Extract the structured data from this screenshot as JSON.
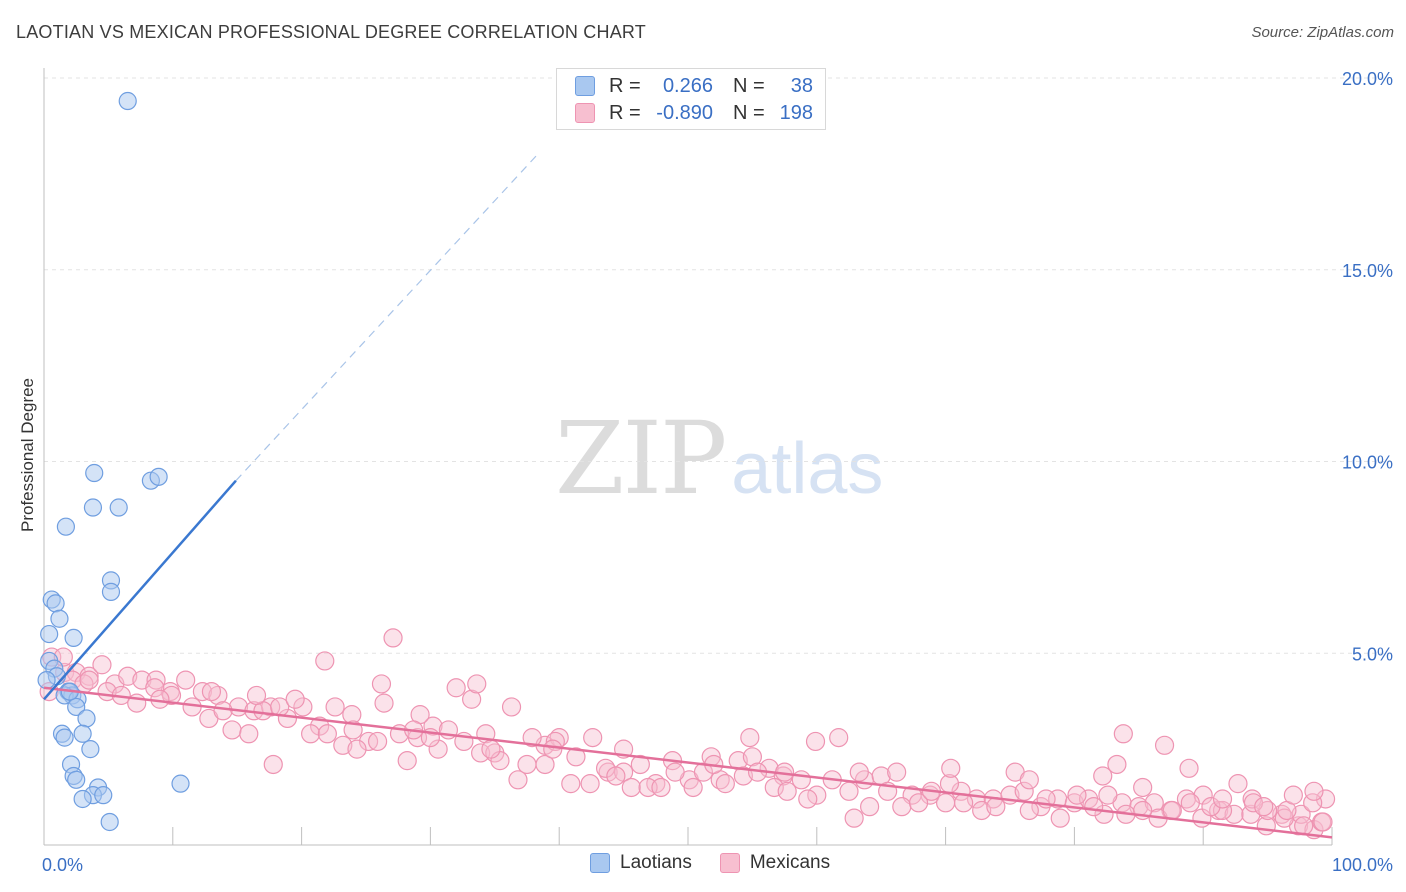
{
  "header": {
    "title": "LAOTIAN VS MEXICAN PROFESSIONAL DEGREE CORRELATION CHART",
    "source": "Source: ZipAtlas.com"
  },
  "watermark": {
    "zip": "ZIP",
    "atlas": "atlas"
  },
  "legend": {
    "rows": [
      {
        "r_label": "R =",
        "r_value": "0.266",
        "n_label": "N =",
        "n_value": "38"
      },
      {
        "r_label": "R =",
        "r_value": "-0.890",
        "n_label": "N =",
        "n_value": "198"
      }
    ]
  },
  "bottom_legend": {
    "laotians": "Laotians",
    "mexicans": "Mexicans"
  },
  "colors": {
    "laotian_fill": "#a9c8f0",
    "laotian_stroke": "#6f9ee0",
    "laotian_line": "#3a78d0",
    "mexican_fill": "#f7bfd0",
    "mexican_stroke": "#ee94b2",
    "mexican_line": "#e3709a",
    "axis_text": "#3a6fc4"
  },
  "chart_data": {
    "type": "scatter",
    "title": "LAOTIAN VS MEXICAN PROFESSIONAL DEGREE CORRELATION CHART",
    "xlabel": "",
    "ylabel": "Professional Degree",
    "xlim": [
      0,
      100
    ],
    "ylim": [
      0,
      20
    ],
    "x_tick_labels": [
      "0.0%",
      "100.0%"
    ],
    "y_ticks": [
      5,
      10,
      15,
      20
    ],
    "y_tick_labels": [
      "5.0%",
      "10.0%",
      "15.0%",
      "20.0%"
    ],
    "grid": true,
    "series": [
      {
        "name": "Laotians",
        "R": 0.266,
        "N": 38,
        "points": [
          [
            6.5,
            19.4
          ],
          [
            0.6,
            6.4
          ],
          [
            0.9,
            6.3
          ],
          [
            1.7,
            8.3
          ],
          [
            3.9,
            9.7
          ],
          [
            3.8,
            8.8
          ],
          [
            5.8,
            8.8
          ],
          [
            8.3,
            9.5
          ],
          [
            8.9,
            9.6
          ],
          [
            5.2,
            6.9
          ],
          [
            5.2,
            6.6
          ],
          [
            0.4,
            5.5
          ],
          [
            1.2,
            5.9
          ],
          [
            2.3,
            5.4
          ],
          [
            0.4,
            4.8
          ],
          [
            0.8,
            4.6
          ],
          [
            1.0,
            4.4
          ],
          [
            1.9,
            4.0
          ],
          [
            2.2,
            3.9
          ],
          [
            1.6,
            3.9
          ],
          [
            2.6,
            3.8
          ],
          [
            2.5,
            3.6
          ],
          [
            3.3,
            3.3
          ],
          [
            1.4,
            2.9
          ],
          [
            1.6,
            2.8
          ],
          [
            3.0,
            2.9
          ],
          [
            3.6,
            2.5
          ],
          [
            2.1,
            2.1
          ],
          [
            2.3,
            1.8
          ],
          [
            2.5,
            1.7
          ],
          [
            4.2,
            1.5
          ],
          [
            3.8,
            1.3
          ],
          [
            4.6,
            1.3
          ],
          [
            3.0,
            1.2
          ],
          [
            10.6,
            1.6
          ],
          [
            5.1,
            0.6
          ],
          [
            0.2,
            4.3
          ],
          [
            2.0,
            4.0
          ]
        ],
        "trend_solid": [
          [
            0,
            3.8
          ],
          [
            14.9,
            9.5
          ]
        ],
        "trend_dashed": [
          [
            14.9,
            9.5
          ],
          [
            38.3,
            18.0
          ]
        ]
      },
      {
        "name": "Mexicans",
        "R": -0.89,
        "N": 198,
        "points": [
          [
            0.4,
            4.0
          ],
          [
            1.6,
            4.5
          ],
          [
            2.5,
            4.5
          ],
          [
            3.5,
            4.4
          ],
          [
            4.5,
            4.7
          ],
          [
            5.5,
            4.2
          ],
          [
            6.5,
            4.4
          ],
          [
            7.6,
            4.3
          ],
          [
            8.7,
            4.3
          ],
          [
            9.8,
            4.0
          ],
          [
            11.0,
            4.3
          ],
          [
            12.3,
            4.0
          ],
          [
            13.5,
            3.9
          ],
          [
            15.1,
            3.6
          ],
          [
            16.3,
            3.5
          ],
          [
            17.6,
            3.6
          ],
          [
            18.9,
            3.3
          ],
          [
            20.1,
            3.6
          ],
          [
            21.4,
            3.1
          ],
          [
            22.6,
            3.6
          ],
          [
            23.9,
            3.4
          ],
          [
            25.2,
            2.7
          ],
          [
            26.4,
            3.7
          ],
          [
            27.6,
            2.9
          ],
          [
            29.0,
            2.8
          ],
          [
            30.2,
            3.1
          ],
          [
            31.4,
            3.0
          ],
          [
            32.6,
            2.7
          ],
          [
            33.9,
            2.4
          ],
          [
            35.0,
            2.4
          ],
          [
            36.3,
            3.6
          ],
          [
            37.5,
            2.1
          ],
          [
            38.9,
            2.6
          ],
          [
            40.0,
            2.8
          ],
          [
            41.3,
            2.3
          ],
          [
            42.6,
            2.8
          ],
          [
            43.8,
            1.9
          ],
          [
            45.0,
            1.9
          ],
          [
            46.3,
            2.1
          ],
          [
            47.5,
            1.6
          ],
          [
            48.8,
            2.2
          ],
          [
            50.1,
            1.7
          ],
          [
            51.2,
            1.9
          ],
          [
            52.5,
            1.7
          ],
          [
            53.9,
            2.2
          ],
          [
            55.0,
            2.3
          ],
          [
            56.3,
            2.0
          ],
          [
            57.4,
            1.8
          ],
          [
            58.8,
            1.7
          ],
          [
            60.0,
            1.3
          ],
          [
            61.2,
            1.7
          ],
          [
            62.5,
            1.4
          ],
          [
            63.7,
            1.7
          ],
          [
            65.0,
            1.8
          ],
          [
            66.2,
            1.9
          ],
          [
            67.4,
            1.3
          ],
          [
            68.8,
            1.3
          ],
          [
            70.0,
            1.1
          ],
          [
            71.2,
            1.4
          ],
          [
            72.4,
            1.2
          ],
          [
            73.7,
            1.2
          ],
          [
            75.0,
            1.3
          ],
          [
            76.1,
            1.4
          ],
          [
            77.4,
            1.0
          ],
          [
            78.7,
            1.2
          ],
          [
            80.0,
            1.1
          ],
          [
            81.1,
            1.2
          ],
          [
            82.3,
            0.8
          ],
          [
            83.7,
            1.1
          ],
          [
            85.0,
            1.0
          ],
          [
            86.2,
            1.1
          ],
          [
            87.5,
            0.9
          ],
          [
            88.7,
            1.2
          ],
          [
            89.9,
            0.7
          ],
          [
            91.2,
            0.9
          ],
          [
            92.4,
            0.8
          ],
          [
            93.7,
            0.8
          ],
          [
            94.9,
            0.5
          ],
          [
            96.1,
            0.8
          ],
          [
            97.4,
            0.5
          ],
          [
            98.6,
            0.4
          ],
          [
            99.5,
            1.2
          ],
          [
            0.6,
            4.9
          ],
          [
            1.5,
            4.9
          ],
          [
            2.2,
            4.3
          ],
          [
            3.1,
            4.2
          ],
          [
            4.9,
            4.0
          ],
          [
            6.0,
            3.9
          ],
          [
            7.2,
            3.7
          ],
          [
            8.6,
            4.1
          ],
          [
            9.9,
            3.9
          ],
          [
            11.5,
            3.6
          ],
          [
            12.8,
            3.3
          ],
          [
            13.9,
            3.5
          ],
          [
            14.6,
            3.0
          ],
          [
            15.9,
            2.9
          ],
          [
            17.0,
            3.5
          ],
          [
            18.3,
            3.6
          ],
          [
            19.5,
            3.8
          ],
          [
            20.7,
            2.9
          ],
          [
            22.0,
            2.9
          ],
          [
            23.2,
            2.6
          ],
          [
            24.3,
            2.5
          ],
          [
            25.9,
            2.7
          ],
          [
            26.2,
            4.2
          ],
          [
            27.1,
            5.4
          ],
          [
            28.2,
            2.2
          ],
          [
            29.2,
            3.4
          ],
          [
            30.6,
            2.5
          ],
          [
            32.0,
            4.1
          ],
          [
            33.2,
            3.8
          ],
          [
            34.3,
            2.9
          ],
          [
            35.4,
            2.2
          ],
          [
            36.8,
            1.7
          ],
          [
            37.9,
            2.8
          ],
          [
            38.9,
            2.1
          ],
          [
            39.7,
            2.7
          ],
          [
            40.9,
            1.6
          ],
          [
            42.4,
            1.6
          ],
          [
            43.6,
            2.0
          ],
          [
            44.4,
            1.8
          ],
          [
            45.6,
            1.5
          ],
          [
            46.9,
            1.5
          ],
          [
            47.9,
            1.5
          ],
          [
            49.0,
            1.9
          ],
          [
            50.4,
            1.5
          ],
          [
            51.8,
            2.3
          ],
          [
            52.9,
            1.6
          ],
          [
            54.3,
            1.8
          ],
          [
            55.4,
            1.9
          ],
          [
            56.7,
            1.5
          ],
          [
            57.7,
            1.4
          ],
          [
            59.3,
            1.2
          ],
          [
            59.9,
            2.7
          ],
          [
            61.7,
            2.8
          ],
          [
            62.9,
            0.7
          ],
          [
            64.1,
            1.0
          ],
          [
            65.5,
            1.4
          ],
          [
            66.6,
            1.0
          ],
          [
            67.9,
            1.1
          ],
          [
            68.9,
            1.4
          ],
          [
            70.3,
            1.6
          ],
          [
            71.4,
            1.1
          ],
          [
            72.8,
            0.9
          ],
          [
            73.9,
            1.0
          ],
          [
            75.4,
            1.9
          ],
          [
            76.5,
            0.9
          ],
          [
            77.8,
            1.2
          ],
          [
            78.9,
            0.7
          ],
          [
            80.2,
            1.3
          ],
          [
            81.5,
            1.0
          ],
          [
            82.6,
            1.3
          ],
          [
            84.0,
            0.8
          ],
          [
            85.3,
            1.5
          ],
          [
            86.5,
            0.7
          ],
          [
            87.6,
            0.9
          ],
          [
            88.9,
            2.0
          ],
          [
            90.0,
            1.3
          ],
          [
            91.5,
            0.9
          ],
          [
            92.7,
            1.6
          ],
          [
            93.8,
            1.2
          ],
          [
            95.0,
            0.9
          ],
          [
            96.3,
            0.7
          ],
          [
            97.6,
            0.8
          ],
          [
            98.5,
            1.1
          ],
          [
            99.2,
            0.6
          ],
          [
            17.8,
            2.1
          ],
          [
            21.8,
            4.8
          ],
          [
            33.6,
            4.2
          ],
          [
            54.8,
            2.8
          ],
          [
            63.3,
            1.9
          ],
          [
            70.4,
            2.0
          ],
          [
            76.5,
            1.7
          ],
          [
            82.2,
            1.8
          ],
          [
            83.3,
            2.1
          ],
          [
            83.8,
            2.9
          ],
          [
            85.3,
            0.9
          ],
          [
            87.0,
            2.6
          ],
          [
            89.0,
            1.1
          ],
          [
            90.6,
            1.0
          ],
          [
            91.5,
            1.2
          ],
          [
            93.9,
            1.1
          ],
          [
            94.7,
            1.0
          ],
          [
            96.5,
            0.9
          ],
          [
            97.0,
            1.3
          ],
          [
            97.8,
            0.5
          ],
          [
            98.6,
            1.4
          ],
          [
            99.3,
            0.6
          ],
          [
            3.5,
            4.3
          ],
          [
            9.0,
            3.8
          ],
          [
            13.0,
            4.0
          ],
          [
            16.5,
            3.9
          ],
          [
            24.0,
            3.0
          ],
          [
            28.7,
            3.0
          ],
          [
            30.0,
            2.8
          ],
          [
            34.7,
            2.5
          ],
          [
            39.5,
            2.5
          ],
          [
            45.0,
            2.5
          ],
          [
            52.0,
            2.1
          ],
          [
            57.5,
            1.9
          ]
        ],
        "trend": [
          [
            0,
            4.1
          ],
          [
            100,
            0.2
          ]
        ]
      }
    ]
  }
}
